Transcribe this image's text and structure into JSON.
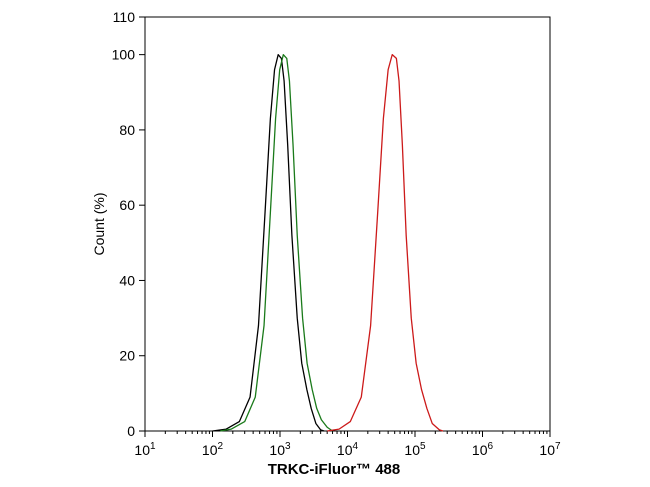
{
  "chart_data": {
    "type": "line",
    "xlabel": "TRKC-iFluor™ 488",
    "ylabel": "Count  (%)",
    "x_scale": "log",
    "xlim": [
      10,
      10000000
    ],
    "ylim": [
      0,
      110
    ],
    "x_ticks": [
      {
        "value": 10,
        "base": "10",
        "exp": "1"
      },
      {
        "value": 100,
        "base": "10",
        "exp": "2"
      },
      {
        "value": 1000,
        "base": "10",
        "exp": "3"
      },
      {
        "value": 10000,
        "base": "10",
        "exp": "4"
      },
      {
        "value": 100000,
        "base": "10",
        "exp": "5"
      },
      {
        "value": 1000000,
        "base": "10",
        "exp": "6"
      },
      {
        "value": 10000000,
        "base": "10",
        "exp": "7"
      }
    ],
    "y_ticks": [
      0,
      20,
      40,
      60,
      80,
      100,
      110
    ],
    "grid": false,
    "series": [
      {
        "color": "#000000",
        "points": [
          [
            100,
            0
          ],
          [
            160,
            0.5
          ],
          [
            250,
            2.5
          ],
          [
            360,
            9
          ],
          [
            480,
            28
          ],
          [
            600,
            58
          ],
          [
            720,
            83
          ],
          [
            830,
            96
          ],
          [
            940,
            100
          ],
          [
            1050,
            99
          ],
          [
            1150,
            93
          ],
          [
            1300,
            76
          ],
          [
            1500,
            52
          ],
          [
            1800,
            30
          ],
          [
            2100,
            18
          ],
          [
            2500,
            11
          ],
          [
            2900,
            6
          ],
          [
            3400,
            2
          ],
          [
            4000,
            0.3
          ],
          [
            4500,
            0
          ]
        ]
      },
      {
        "color": "#1a7a1a",
        "points": [
          [
            130,
            0
          ],
          [
            190,
            0.5
          ],
          [
            300,
            2.5
          ],
          [
            430,
            9
          ],
          [
            580,
            28
          ],
          [
            720,
            58
          ],
          [
            860,
            83
          ],
          [
            990,
            96
          ],
          [
            1120,
            100
          ],
          [
            1260,
            99
          ],
          [
            1380,
            93
          ],
          [
            1560,
            76
          ],
          [
            1800,
            52
          ],
          [
            2160,
            30
          ],
          [
            2520,
            18
          ],
          [
            3000,
            11
          ],
          [
            3500,
            6
          ],
          [
            4100,
            3
          ],
          [
            5000,
            1
          ],
          [
            6000,
            0
          ]
        ]
      },
      {
        "color": "#cc1a1a",
        "points": [
          [
            5000,
            0
          ],
          [
            7500,
            0.5
          ],
          [
            11000,
            2.5
          ],
          [
            16000,
            9
          ],
          [
            22000,
            28
          ],
          [
            28000,
            58
          ],
          [
            34000,
            83
          ],
          [
            40000,
            96
          ],
          [
            46000,
            100
          ],
          [
            53000,
            99
          ],
          [
            58000,
            93
          ],
          [
            65000,
            76
          ],
          [
            74000,
            52
          ],
          [
            88000,
            30
          ],
          [
            104000,
            18
          ],
          [
            125000,
            11
          ],
          [
            150000,
            6
          ],
          [
            180000,
            2
          ],
          [
            230000,
            0.3
          ],
          [
            260000,
            0
          ]
        ]
      }
    ]
  }
}
